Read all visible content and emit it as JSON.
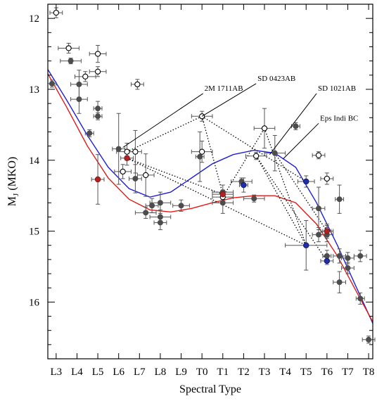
{
  "chart_data": {
    "type": "scatter",
    "xlabel": "Spectral Type",
    "ylabel": "M",
    "ylabel_sub": "J",
    "ylabel_suffix": " (MKO)",
    "categories": [
      "L3",
      "L4",
      "L5",
      "L6",
      "L7",
      "L8",
      "L9",
      "T0",
      "T1",
      "T2",
      "T3",
      "T4",
      "T5",
      "T6",
      "T7",
      "T8"
    ],
    "xlim": [
      -0.4,
      15.2
    ],
    "ylim": [
      16.8,
      11.8
    ],
    "y_ticks": [
      12,
      13,
      14,
      15,
      16
    ],
    "grid": false,
    "colors": {
      "axis": "#000000",
      "filled_marker": "#4d4d4d",
      "open_marker": "#000000",
      "error_bar": "#555555",
      "red_marker": "#b22222",
      "blue_marker": "#1f2fa8",
      "blue_curve": "#1f1fd6",
      "red_curve": "#e01a1a",
      "dotted_link": "#000000"
    },
    "annotations": [
      {
        "text": "2M 1711AB",
        "x": 7.05,
        "y": 13.02,
        "px": 3.2,
        "py": 13.82
      },
      {
        "text": "SD 0423AB",
        "x": 9.6,
        "y": 12.88,
        "px": 7.0,
        "py": 13.38
      },
      {
        "text": "SD 1021AB",
        "x": 12.5,
        "y": 13.02,
        "px": 10.25,
        "py": 13.92
      },
      {
        "text": "Eps Indi BC",
        "x": 12.6,
        "y": 13.44,
        "px": 10.9,
        "py": 13.98
      }
    ],
    "series": [
      {
        "style": "open",
        "points": [
          {
            "x": 0.0,
            "y": 11.92,
            "ex": 0.3,
            "ey": 0.07
          },
          {
            "x": 0.6,
            "y": 12.42,
            "ex": 0.5,
            "ey": 0.07
          },
          {
            "x": 1.4,
            "y": 12.82,
            "ex": 0.5,
            "ey": 0.07
          },
          {
            "x": 2.0,
            "y": 12.5,
            "ex": 0.4,
            "ey": 0.12
          },
          {
            "x": 2.0,
            "y": 12.75,
            "ex": 0.4,
            "ey": 0.07
          },
          {
            "x": 3.2,
            "y": 14.16,
            "ex": 0.4,
            "ey": 0.1
          },
          {
            "x": 3.4,
            "y": 13.88,
            "ex": 0.5,
            "ey": 0.12
          },
          {
            "x": 3.8,
            "y": 13.88,
            "ex": 0.3,
            "ey": 0.3
          },
          {
            "x": 3.9,
            "y": 12.93,
            "ex": 0.3,
            "ey": 0.07
          },
          {
            "x": 4.3,
            "y": 14.21,
            "ex": 0.4,
            "ey": 0.3
          },
          {
            "x": 7.0,
            "y": 13.38,
            "ex": 0.5,
            "ey": 0.07
          },
          {
            "x": 7.0,
            "y": 13.88,
            "ex": 0.5,
            "ey": 0.15
          },
          {
            "x": 8.0,
            "y": 14.52,
            "ex": 0.5,
            "ey": 0.1
          },
          {
            "x": 10.0,
            "y": 13.55,
            "ex": 0.5,
            "ey": 0.28
          },
          {
            "x": 9.6,
            "y": 13.94,
            "ex": 0.5,
            "ey": 0.05
          },
          {
            "x": 12.6,
            "y": 13.93,
            "ex": 0.3,
            "ey": 0.05
          },
          {
            "x": 13.0,
            "y": 14.26,
            "ex": 0.3,
            "ey": 0.08
          }
        ]
      },
      {
        "style": "filled",
        "points": [
          {
            "x": -0.2,
            "y": 12.92,
            "ex": 0.2,
            "ey": 0.05
          },
          {
            "x": 0.7,
            "y": 12.6,
            "ex": 0.5,
            "ey": 0.04
          },
          {
            "x": 1.1,
            "y": 12.93,
            "ex": 0.4,
            "ey": 0.2
          },
          {
            "x": 1.1,
            "y": 13.14,
            "ex": 0.4,
            "ey": 0.2
          },
          {
            "x": 1.6,
            "y": 13.62,
            "ex": 0.2,
            "ey": 0.05
          },
          {
            "x": 2.0,
            "y": 13.27,
            "ex": 0.2,
            "ey": 0.1
          },
          {
            "x": 2.0,
            "y": 13.38,
            "ex": 0.2,
            "ey": 0.05
          },
          {
            "x": 3.0,
            "y": 13.84,
            "ex": 0.3,
            "ey": 0.5
          },
          {
            "x": 3.8,
            "y": 14.26,
            "ex": 0.3,
            "ey": 0.2
          },
          {
            "x": 4.3,
            "y": 14.74,
            "ex": 0.5,
            "ey": 0.08
          },
          {
            "x": 4.6,
            "y": 14.64,
            "ex": 0.3,
            "ey": 0.1
          },
          {
            "x": 5.0,
            "y": 14.6,
            "ex": 0.5,
            "ey": 0.15
          },
          {
            "x": 5.0,
            "y": 14.8,
            "ex": 0.5,
            "ey": 0.1
          },
          {
            "x": 5.0,
            "y": 14.88,
            "ex": 0.3,
            "ey": 0.1
          },
          {
            "x": 6.0,
            "y": 14.64,
            "ex": 0.4,
            "ey": 0.08
          },
          {
            "x": 6.9,
            "y": 13.95,
            "ex": 0.2,
            "ey": 0.35
          },
          {
            "x": 8.0,
            "y": 14.45,
            "ex": 0.5,
            "ey": 0.1
          },
          {
            "x": 8.0,
            "y": 14.6,
            "ex": 0.5,
            "ey": 0.15
          },
          {
            "x": 8.9,
            "y": 14.3,
            "ex": 0.5,
            "ey": 0.05
          },
          {
            "x": 9.5,
            "y": 14.54,
            "ex": 0.5,
            "ey": 0.05
          },
          {
            "x": 10.5,
            "y": 13.9,
            "ex": 0.5,
            "ey": 0.25
          },
          {
            "x": 11.5,
            "y": 13.52,
            "ex": 0.2,
            "ey": 0.05
          },
          {
            "x": 12.6,
            "y": 14.68,
            "ex": 0.3,
            "ey": 0.3
          },
          {
            "x": 12.6,
            "y": 15.05,
            "ex": 0.3,
            "ey": 0.1
          },
          {
            "x": 13.0,
            "y": 15.0,
            "ex": 0.3,
            "ey": 0.1
          },
          {
            "x": 13.0,
            "y": 15.05,
            "ex": 0.3,
            "ey": 0.1
          },
          {
            "x": 13.0,
            "y": 15.35,
            "ex": 0.2,
            "ey": 0.08
          },
          {
            "x": 13.6,
            "y": 14.55,
            "ex": 0.2,
            "ey": 0.2
          },
          {
            "x": 13.6,
            "y": 15.35,
            "ex": 0.3,
            "ey": 0.1
          },
          {
            "x": 13.6,
            "y": 15.72,
            "ex": 0.3,
            "ey": 0.15
          },
          {
            "x": 14.0,
            "y": 15.38,
            "ex": 0.3,
            "ey": 0.08
          },
          {
            "x": 14.0,
            "y": 15.52,
            "ex": 0.3,
            "ey": 0.08
          },
          {
            "x": 14.6,
            "y": 15.35,
            "ex": 0.3,
            "ey": 0.08
          },
          {
            "x": 14.6,
            "y": 15.95,
            "ex": 0.2,
            "ey": 0.08
          },
          {
            "x": 15.0,
            "y": 16.53,
            "ex": 0.3,
            "ey": 0.05
          }
        ]
      },
      {
        "style": "red",
        "points": [
          {
            "x": 2.0,
            "y": 14.27,
            "ex": 0.3,
            "ey": 0.35
          },
          {
            "x": 3.4,
            "y": 13.97,
            "ex": 0.3,
            "ey": 0.1
          },
          {
            "x": 8.0,
            "y": 14.48,
            "ex": 0.5,
            "ey": 0.05
          },
          {
            "x": 13.0,
            "y": 15.0,
            "ex": 0.2,
            "ey": 0.08
          }
        ]
      },
      {
        "style": "blue",
        "points": [
          {
            "x": 9.0,
            "y": 14.35,
            "ex": 0.2,
            "ey": 0.1
          },
          {
            "x": 12.0,
            "y": 14.3,
            "ex": 0.4,
            "ey": 0.08
          },
          {
            "x": 12.0,
            "y": 15.2,
            "ex": 1.0,
            "ey": 0.35
          },
          {
            "x": 13.0,
            "y": 15.42,
            "ex": 0.3,
            "ey": 0.05
          }
        ]
      }
    ],
    "curves": [
      {
        "color": "blue",
        "points": [
          [
            -0.4,
            12.72
          ],
          [
            0.5,
            13.15
          ],
          [
            1.5,
            13.65
          ],
          [
            2.5,
            14.1
          ],
          [
            3.5,
            14.4
          ],
          [
            4.5,
            14.52
          ],
          [
            5.5,
            14.45
          ],
          [
            6.5,
            14.25
          ],
          [
            7.5,
            14.05
          ],
          [
            8.5,
            13.92
          ],
          [
            9.5,
            13.86
          ],
          [
            10.5,
            13.9
          ],
          [
            11.5,
            14.1
          ],
          [
            12.5,
            14.6
          ],
          [
            13.5,
            15.2
          ],
          [
            14.5,
            15.85
          ],
          [
            15.2,
            16.3
          ]
        ]
      },
      {
        "color": "red",
        "points": [
          [
            -0.4,
            12.78
          ],
          [
            0.5,
            13.25
          ],
          [
            1.5,
            13.8
          ],
          [
            2.5,
            14.25
          ],
          [
            3.5,
            14.55
          ],
          [
            4.5,
            14.7
          ],
          [
            5.5,
            14.73
          ],
          [
            6.5,
            14.68
          ],
          [
            7.5,
            14.6
          ],
          [
            8.5,
            14.53
          ],
          [
            9.5,
            14.5
          ],
          [
            10.5,
            14.5
          ],
          [
            11.5,
            14.6
          ],
          [
            12.5,
            14.9
          ],
          [
            13.5,
            15.35
          ],
          [
            14.5,
            15.9
          ],
          [
            15.2,
            16.28
          ]
        ]
      }
    ],
    "dotted_links": [
      [
        [
          3.4,
          13.88
        ],
        [
          7.0,
          13.38
        ]
      ],
      [
        [
          7.0,
          13.38
        ],
        [
          12.0,
          14.3
        ]
      ],
      [
        [
          3.4,
          13.97
        ],
        [
          12.0,
          15.2
        ]
      ],
      [
        [
          3.4,
          13.97
        ],
        [
          8.0,
          14.48
        ]
      ],
      [
        [
          7.0,
          13.38
        ],
        [
          8.0,
          14.48
        ]
      ],
      [
        [
          10.0,
          13.55
        ],
        [
          12.0,
          15.2
        ]
      ],
      [
        [
          8.0,
          14.52
        ],
        [
          10.0,
          13.55
        ]
      ],
      [
        [
          9.6,
          13.94
        ],
        [
          12.0,
          15.2
        ]
      ],
      [
        [
          9.6,
          13.94
        ],
        [
          13.0,
          15.42
        ]
      ],
      [
        [
          10.5,
          13.9
        ],
        [
          13.0,
          15.0
        ]
      ]
    ]
  }
}
